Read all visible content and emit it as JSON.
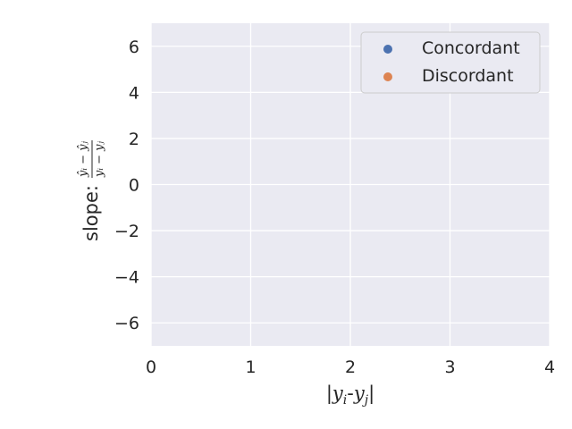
{
  "chart_data": {
    "type": "scatter",
    "x": {
      "ticks": [
        0,
        1,
        2,
        3,
        4
      ],
      "lim": [
        0,
        4
      ]
    },
    "y": {
      "ticks": [
        -6,
        -4,
        -2,
        0,
        2,
        4,
        6
      ],
      "lim": [
        -7,
        7
      ]
    },
    "xlabel": {
      "bar_open": "|",
      "y1": "y",
      "sub1": "i",
      "dash": "-",
      "y2": "y",
      "sub2": "j",
      "bar_close": "|"
    },
    "ylabel": {
      "prefix": "slope:",
      "num": "ŷᵢ − ŷⱼ",
      "den": "yᵢ − yⱼ"
    },
    "series": [
      {
        "name": "Concordant",
        "color": "#4c72b0",
        "points": []
      },
      {
        "name": "Discordant",
        "color": "#dd8452",
        "points": []
      }
    ],
    "grid": true,
    "legend_position": "top-right",
    "background": "#eaeaf2"
  }
}
